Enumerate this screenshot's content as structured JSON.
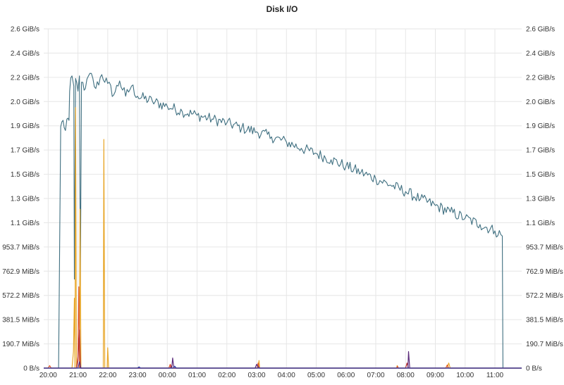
{
  "chart_data": {
    "type": "line",
    "title": "Disk I/O",
    "xlabel": "",
    "ylabel": "",
    "x_ticks": [
      "20:00",
      "21:00",
      "22:00",
      "23:00",
      "00:00",
      "01:00",
      "02:00",
      "03:00",
      "04:00",
      "05:00",
      "06:00",
      "07:00",
      "08:00",
      "09:00",
      "10:00",
      "11:00"
    ],
    "y_ticks": [
      "0 B/s",
      "190.7 MiB/s",
      "381.5 MiB/s",
      "572.2 MiB/s",
      "762.9 MiB/s",
      "953.7 MiB/s",
      "1.1 GiB/s",
      "1.3 GiB/s",
      "1.5 GiB/s",
      "1.7 GiB/s",
      "1.9 GiB/s",
      "2.0 GiB/s",
      "2.2 GiB/s",
      "2.4 GiB/s",
      "2.6 GiB/s"
    ],
    "ylim_mib": [
      0,
      2670
    ],
    "xlim_hours_since_2000": [
      -0.15,
      15.9
    ],
    "grid": true,
    "series": [
      {
        "color": "#3f6f80",
        "units": "MiB/s",
        "points": [
          [
            -0.15,
            0
          ],
          [
            0.35,
            0
          ],
          [
            0.42,
            1900
          ],
          [
            0.5,
            1950
          ],
          [
            0.58,
            1870
          ],
          [
            0.63,
            1960
          ],
          [
            0.7,
            1950
          ],
          [
            0.72,
            2180
          ],
          [
            0.8,
            2300
          ],
          [
            0.86,
            2220
          ],
          [
            0.88,
            700
          ],
          [
            0.92,
            2280
          ],
          [
            1.0,
            2180
          ],
          [
            1.05,
            2300
          ],
          [
            1.08,
            650
          ],
          [
            1.12,
            2250
          ],
          [
            1.25,
            2200
          ],
          [
            1.4,
            2320
          ],
          [
            1.6,
            2200
          ],
          [
            1.8,
            2310
          ],
          [
            2.0,
            2240
          ],
          [
            2.2,
            2150
          ],
          [
            2.4,
            2260
          ],
          [
            2.6,
            2140
          ],
          [
            2.8,
            2220
          ],
          [
            3.0,
            2140
          ],
          [
            3.5,
            2100
          ],
          [
            4.0,
            2060
          ],
          [
            4.5,
            2020
          ],
          [
            5.0,
            1990
          ],
          [
            5.5,
            1960
          ],
          [
            6.0,
            1930
          ],
          [
            6.5,
            1890
          ],
          [
            7.0,
            1860
          ],
          [
            7.5,
            1820
          ],
          [
            8.0,
            1780
          ],
          [
            8.5,
            1730
          ],
          [
            9.0,
            1690
          ],
          [
            9.5,
            1640
          ],
          [
            10.0,
            1590
          ],
          [
            10.5,
            1540
          ],
          [
            11.0,
            1490
          ],
          [
            11.5,
            1440
          ],
          [
            12.0,
            1390
          ],
          [
            12.5,
            1330
          ],
          [
            13.0,
            1280
          ],
          [
            13.5,
            1230
          ],
          [
            14.0,
            1180
          ],
          [
            14.5,
            1130
          ],
          [
            15.0,
            1080
          ],
          [
            15.2,
            1050
          ],
          [
            15.25,
            1040
          ],
          [
            15.27,
            0
          ],
          [
            15.9,
            0
          ]
        ],
        "noise": 45
      },
      {
        "color": "#e8a628",
        "units": "MiB/s",
        "points": [
          [
            -0.15,
            0
          ],
          [
            0.8,
            0
          ],
          [
            0.85,
            130
          ],
          [
            0.88,
            550
          ],
          [
            0.9,
            0
          ],
          [
            0.92,
            2050
          ],
          [
            0.95,
            0
          ],
          [
            1.05,
            0
          ],
          [
            1.07,
            1250
          ],
          [
            1.1,
            0
          ],
          [
            1.85,
            0
          ],
          [
            1.87,
            1800
          ],
          [
            1.9,
            0
          ],
          [
            1.98,
            0
          ],
          [
            2.0,
            160
          ],
          [
            2.03,
            0
          ],
          [
            7.05,
            0
          ],
          [
            7.08,
            60
          ],
          [
            7.1,
            0
          ],
          [
            11.7,
            0
          ],
          [
            11.72,
            20
          ],
          [
            11.75,
            0
          ],
          [
            13.4,
            0
          ],
          [
            13.45,
            40
          ],
          [
            13.5,
            0
          ],
          [
            15.9,
            0
          ]
        ],
        "noise": 0
      },
      {
        "color": "#e0582a",
        "units": "MiB/s",
        "points": [
          [
            -0.15,
            0
          ],
          [
            0.0,
            0
          ],
          [
            0.05,
            20
          ],
          [
            0.1,
            0
          ],
          [
            0.95,
            0
          ],
          [
            1.0,
            90
          ],
          [
            1.03,
            640
          ],
          [
            1.06,
            0
          ],
          [
            4.05,
            0
          ],
          [
            4.1,
            30
          ],
          [
            4.15,
            0
          ],
          [
            7.02,
            0
          ],
          [
            7.05,
            40
          ],
          [
            7.08,
            0
          ],
          [
            11.7,
            0
          ],
          [
            11.73,
            15
          ],
          [
            11.76,
            0
          ],
          [
            13.35,
            0
          ],
          [
            13.4,
            25
          ],
          [
            13.45,
            0
          ],
          [
            15.9,
            0
          ]
        ],
        "noise": 0
      },
      {
        "color": "#b52a2a",
        "units": "MiB/s",
        "points": [
          [
            -0.15,
            0
          ],
          [
            0.95,
            0
          ],
          [
            1.0,
            60
          ],
          [
            1.05,
            300
          ],
          [
            1.08,
            0
          ],
          [
            4.1,
            0
          ],
          [
            4.12,
            20
          ],
          [
            4.15,
            0
          ],
          [
            12.0,
            0
          ],
          [
            12.05,
            40
          ],
          [
            12.1,
            0
          ],
          [
            15.9,
            0
          ]
        ],
        "noise": 0
      },
      {
        "color": "#5a2a7a",
        "units": "MiB/s",
        "points": [
          [
            -0.15,
            0
          ],
          [
            1.0,
            0
          ],
          [
            1.05,
            50
          ],
          [
            1.1,
            0
          ],
          [
            4.15,
            0
          ],
          [
            4.18,
            80
          ],
          [
            4.22,
            0
          ],
          [
            6.95,
            0
          ],
          [
            7.0,
            30
          ],
          [
            7.05,
            10
          ],
          [
            7.1,
            0
          ],
          [
            12.08,
            0
          ],
          [
            12.1,
            130
          ],
          [
            12.14,
            0
          ],
          [
            15.9,
            0
          ]
        ],
        "noise": 0
      },
      {
        "color": "#3040a8",
        "units": "MiB/s",
        "points": [
          [
            -0.15,
            0
          ],
          [
            3.0,
            0
          ],
          [
            3.05,
            10
          ],
          [
            3.1,
            0
          ],
          [
            4.2,
            0
          ],
          [
            4.25,
            15
          ],
          [
            4.3,
            0
          ],
          [
            15.9,
            0
          ]
        ],
        "noise": 0
      }
    ]
  }
}
